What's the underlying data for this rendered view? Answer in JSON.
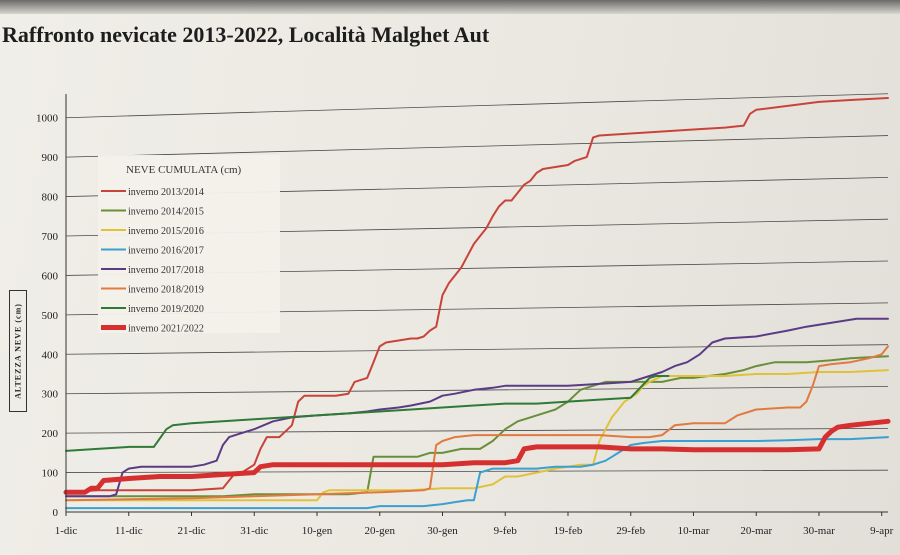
{
  "title": "Raffronto nevicate 2013-2022, Località Malghet Aut",
  "chart_data": {
    "type": "line",
    "ylabel": "ALTEZZA NEVE (cm)",
    "ylim": [
      0,
      1050
    ],
    "yticks": [
      0,
      100,
      200,
      300,
      400,
      500,
      600,
      700,
      800,
      900,
      1000
    ],
    "xlim": [
      0,
      131
    ],
    "xticks": [
      {
        "label": "1-dic",
        "day": 0
      },
      {
        "label": "11-dic",
        "day": 10
      },
      {
        "label": "21-dic",
        "day": 20
      },
      {
        "label": "31-dic",
        "day": 30
      },
      {
        "label": "10-gen",
        "day": 40
      },
      {
        "label": "20-gen",
        "day": 50
      },
      {
        "label": "30-gen",
        "day": 60
      },
      {
        "label": "9-feb",
        "day": 70
      },
      {
        "label": "19-feb",
        "day": 80
      },
      {
        "label": "29-feb",
        "day": 90
      },
      {
        "label": "10-mar",
        "day": 100
      },
      {
        "label": "20-mar",
        "day": 110
      },
      {
        "label": "30-mar",
        "day": 120
      },
      {
        "label": "9-apr",
        "day": 130
      }
    ],
    "grid": true,
    "legend_title": "NEVE CUMULATA (cm)",
    "legend_position": "top-left",
    "series": [
      {
        "name": "inverno 2013/2014",
        "color": "#c8443a",
        "width": 2,
        "points": [
          [
            0,
            50
          ],
          [
            5,
            55
          ],
          [
            10,
            55
          ],
          [
            20,
            55
          ],
          [
            25,
            60
          ],
          [
            27,
            100
          ],
          [
            28,
            100
          ],
          [
            30,
            120
          ],
          [
            31,
            160
          ],
          [
            32,
            190
          ],
          [
            34,
            190
          ],
          [
            36,
            220
          ],
          [
            37,
            280
          ],
          [
            38,
            295
          ],
          [
            40,
            295
          ],
          [
            43,
            295
          ],
          [
            45,
            300
          ],
          [
            46,
            330
          ],
          [
            48,
            340
          ],
          [
            49,
            380
          ],
          [
            50,
            420
          ],
          [
            51,
            430
          ],
          [
            53,
            435
          ],
          [
            55,
            440
          ],
          [
            56,
            440
          ],
          [
            57,
            445
          ],
          [
            58,
            460
          ],
          [
            59,
            470
          ],
          [
            60,
            550
          ],
          [
            61,
            580
          ],
          [
            63,
            620
          ],
          [
            64,
            650
          ],
          [
            65,
            680
          ],
          [
            66,
            700
          ],
          [
            67,
            720
          ],
          [
            68,
            750
          ],
          [
            69,
            775
          ],
          [
            70,
            790
          ],
          [
            71,
            790
          ],
          [
            72,
            810
          ],
          [
            73,
            830
          ],
          [
            74,
            840
          ],
          [
            75,
            860
          ],
          [
            76,
            870
          ],
          [
            78,
            875
          ],
          [
            80,
            880
          ],
          [
            81,
            890
          ],
          [
            83,
            900
          ],
          [
            84,
            950
          ],
          [
            85,
            955
          ],
          [
            90,
            960
          ],
          [
            95,
            965
          ],
          [
            100,
            970
          ],
          [
            105,
            975
          ],
          [
            108,
            980
          ],
          [
            109,
            1010
          ],
          [
            110,
            1020
          ],
          [
            115,
            1030
          ],
          [
            120,
            1040
          ],
          [
            125,
            1045
          ],
          [
            131,
            1050
          ]
        ]
      },
      {
        "name": "inverno 2014/2015",
        "color": "#6a8f3a",
        "width": 2,
        "points": [
          [
            0,
            40
          ],
          [
            25,
            40
          ],
          [
            30,
            45
          ],
          [
            40,
            45
          ],
          [
            45,
            45
          ],
          [
            48,
            50
          ],
          [
            49,
            140
          ],
          [
            52,
            140
          ],
          [
            56,
            140
          ],
          [
            58,
            150
          ],
          [
            60,
            150
          ],
          [
            63,
            160
          ],
          [
            66,
            160
          ],
          [
            68,
            180
          ],
          [
            70,
            210
          ],
          [
            72,
            230
          ],
          [
            74,
            240
          ],
          [
            76,
            250
          ],
          [
            78,
            260
          ],
          [
            80,
            280
          ],
          [
            82,
            310
          ],
          [
            84,
            320
          ],
          [
            86,
            330
          ],
          [
            90,
            330
          ],
          [
            95,
            330
          ],
          [
            98,
            340
          ],
          [
            100,
            340
          ],
          [
            105,
            350
          ],
          [
            108,
            360
          ],
          [
            110,
            370
          ],
          [
            113,
            380
          ],
          [
            118,
            380
          ],
          [
            122,
            385
          ],
          [
            125,
            390
          ],
          [
            131,
            395
          ]
        ]
      },
      {
        "name": "inverno 2015/2016",
        "color": "#e0c23a",
        "width": 2,
        "points": [
          [
            0,
            30
          ],
          [
            40,
            30
          ],
          [
            41,
            50
          ],
          [
            42,
            55
          ],
          [
            50,
            55
          ],
          [
            55,
            55
          ],
          [
            60,
            60
          ],
          [
            65,
            60
          ],
          [
            68,
            70
          ],
          [
            70,
            90
          ],
          [
            72,
            90
          ],
          [
            75,
            100
          ],
          [
            78,
            110
          ],
          [
            80,
            115
          ],
          [
            82,
            120
          ],
          [
            84,
            120
          ],
          [
            85,
            180
          ],
          [
            86,
            210
          ],
          [
            87,
            240
          ],
          [
            89,
            280
          ],
          [
            90,
            290
          ],
          [
            91,
            300
          ],
          [
            92,
            320
          ],
          [
            93,
            330
          ],
          [
            95,
            345
          ],
          [
            100,
            345
          ],
          [
            105,
            345
          ],
          [
            110,
            350
          ],
          [
            115,
            350
          ],
          [
            120,
            355
          ],
          [
            125,
            355
          ],
          [
            131,
            360
          ]
        ]
      },
      {
        "name": "inverno 2016/2017",
        "color": "#3aa0d0",
        "width": 2,
        "points": [
          [
            0,
            10
          ],
          [
            30,
            10
          ],
          [
            45,
            10
          ],
          [
            48,
            10
          ],
          [
            50,
            15
          ],
          [
            53,
            15
          ],
          [
            57,
            15
          ],
          [
            60,
            20
          ],
          [
            62,
            25
          ],
          [
            64,
            30
          ],
          [
            65,
            30
          ],
          [
            66,
            100
          ],
          [
            68,
            110
          ],
          [
            72,
            110
          ],
          [
            75,
            110
          ],
          [
            78,
            115
          ],
          [
            82,
            115
          ],
          [
            84,
            120
          ],
          [
            86,
            130
          ],
          [
            87,
            140
          ],
          [
            88,
            150
          ],
          [
            90,
            170
          ],
          [
            92,
            175
          ],
          [
            95,
            180
          ],
          [
            100,
            180
          ],
          [
            105,
            180
          ],
          [
            110,
            180
          ],
          [
            115,
            182
          ],
          [
            120,
            185
          ],
          [
            125,
            185
          ],
          [
            131,
            190
          ]
        ]
      },
      {
        "name": "inverno 2017/2018",
        "color": "#5b3b86",
        "width": 2,
        "points": [
          [
            0,
            40
          ],
          [
            7,
            40
          ],
          [
            8,
            45
          ],
          [
            9,
            100
          ],
          [
            10,
            110
          ],
          [
            12,
            115
          ],
          [
            15,
            115
          ],
          [
            20,
            115
          ],
          [
            22,
            120
          ],
          [
            24,
            130
          ],
          [
            25,
            170
          ],
          [
            26,
            190
          ],
          [
            28,
            200
          ],
          [
            30,
            210
          ],
          [
            33,
            230
          ],
          [
            36,
            240
          ],
          [
            40,
            245
          ],
          [
            45,
            250
          ],
          [
            48,
            255
          ],
          [
            50,
            260
          ],
          [
            53,
            265
          ],
          [
            55,
            270
          ],
          [
            58,
            280
          ],
          [
            60,
            295
          ],
          [
            62,
            300
          ],
          [
            65,
            310
          ],
          [
            68,
            315
          ],
          [
            70,
            320
          ],
          [
            75,
            320
          ],
          [
            80,
            320
          ],
          [
            85,
            325
          ],
          [
            90,
            330
          ],
          [
            95,
            355
          ],
          [
            97,
            370
          ],
          [
            99,
            380
          ],
          [
            101,
            400
          ],
          [
            103,
            430
          ],
          [
            105,
            440
          ],
          [
            110,
            445
          ],
          [
            115,
            460
          ],
          [
            118,
            470
          ],
          [
            122,
            480
          ],
          [
            126,
            490
          ],
          [
            131,
            490
          ]
        ]
      },
      {
        "name": "inverno 2018/2019",
        "color": "#e07a40",
        "width": 2,
        "points": [
          [
            0,
            30
          ],
          [
            20,
            35
          ],
          [
            30,
            40
          ],
          [
            40,
            45
          ],
          [
            50,
            50
          ],
          [
            57,
            55
          ],
          [
            58,
            60
          ],
          [
            59,
            170
          ],
          [
            60,
            180
          ],
          [
            62,
            190
          ],
          [
            65,
            195
          ],
          [
            70,
            195
          ],
          [
            75,
            195
          ],
          [
            80,
            195
          ],
          [
            85,
            195
          ],
          [
            90,
            190
          ],
          [
            93,
            190
          ],
          [
            95,
            195
          ],
          [
            97,
            220
          ],
          [
            100,
            225
          ],
          [
            105,
            225
          ],
          [
            107,
            245
          ],
          [
            110,
            260
          ],
          [
            115,
            265
          ],
          [
            117,
            265
          ],
          [
            118,
            280
          ],
          [
            119,
            320
          ],
          [
            120,
            370
          ],
          [
            122,
            375
          ],
          [
            125,
            380
          ],
          [
            128,
            390
          ],
          [
            130,
            400
          ],
          [
            131,
            420
          ]
        ]
      },
      {
        "name": "inverno 2019/2020",
        "color": "#2e7a36",
        "width": 2,
        "points": [
          [
            0,
            155
          ],
          [
            5,
            160
          ],
          [
            10,
            165
          ],
          [
            14,
            165
          ],
          [
            16,
            210
          ],
          [
            17,
            220
          ],
          [
            20,
            225
          ],
          [
            25,
            230
          ],
          [
            30,
            235
          ],
          [
            35,
            240
          ],
          [
            40,
            245
          ],
          [
            45,
            250
          ],
          [
            50,
            255
          ],
          [
            55,
            260
          ],
          [
            60,
            265
          ],
          [
            65,
            270
          ],
          [
            70,
            275
          ],
          [
            75,
            275
          ],
          [
            80,
            280
          ],
          [
            85,
            285
          ],
          [
            90,
            290
          ],
          [
            93,
            340
          ],
          [
            94,
            345
          ],
          [
            96,
            345
          ]
        ]
      },
      {
        "name": "inverno 2021/2022",
        "color": "#d62f2f",
        "width": 5,
        "points": [
          [
            0,
            50
          ],
          [
            3,
            50
          ],
          [
            4,
            60
          ],
          [
            5,
            60
          ],
          [
            6,
            80
          ],
          [
            10,
            85
          ],
          [
            15,
            90
          ],
          [
            20,
            90
          ],
          [
            25,
            95
          ],
          [
            30,
            100
          ],
          [
            31,
            115
          ],
          [
            33,
            120
          ],
          [
            40,
            120
          ],
          [
            45,
            120
          ],
          [
            50,
            120
          ],
          [
            55,
            120
          ],
          [
            60,
            120
          ],
          [
            65,
            125
          ],
          [
            70,
            125
          ],
          [
            72,
            130
          ],
          [
            73,
            160
          ],
          [
            75,
            165
          ],
          [
            80,
            165
          ],
          [
            85,
            165
          ],
          [
            90,
            160
          ],
          [
            95,
            160
          ],
          [
            100,
            158
          ],
          [
            105,
            158
          ],
          [
            110,
            158
          ],
          [
            115,
            158
          ],
          [
            120,
            160
          ],
          [
            121,
            190
          ],
          [
            122,
            205
          ],
          [
            123,
            215
          ],
          [
            125,
            220
          ],
          [
            128,
            225
          ],
          [
            131,
            230
          ]
        ]
      }
    ]
  }
}
